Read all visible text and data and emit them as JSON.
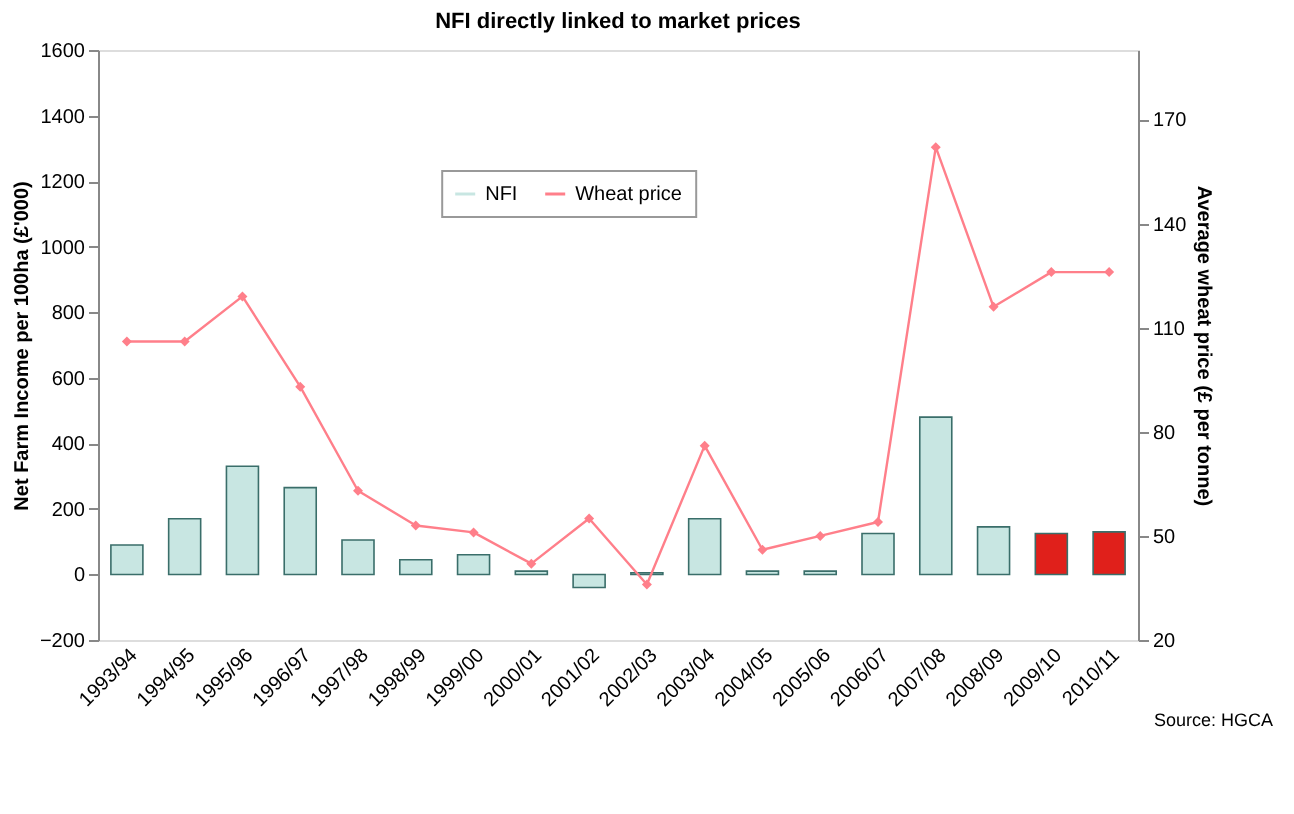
{
  "chart_data": {
    "type": "bar",
    "title": "NFI directly linked to market prices",
    "categories": [
      "1993/94",
      "1994/95",
      "1995/96",
      "1996/97",
      "1997/98",
      "1998/99",
      "1999/00",
      "2000/01",
      "2001/02",
      "2002/03",
      "2003/04",
      "2004/05",
      "2005/06",
      "2006/07",
      "2007/08",
      "2008/09",
      "2009/10",
      "2010/11"
    ],
    "ylabel": "Net Farm Income per 100ha (£'000)",
    "y2label": "Average wheat price (£ per tonne)",
    "series": [
      {
        "name": "NFI",
        "color": "#c8e6e2",
        "colors": [
          "#c8e6e2",
          "#c8e6e2",
          "#c8e6e2",
          "#c8e6e2",
          "#c8e6e2",
          "#c8e6e2",
          "#c8e6e2",
          "#c8e6e2",
          "#c8e6e2",
          "#c8e6e2",
          "#c8e6e2",
          "#c8e6e2",
          "#c8e6e2",
          "#c8e6e2",
          "#c8e6e2",
          "#c8e6e2",
          "#e0201b",
          "#e0201b"
        ],
        "values": [
          90,
          170,
          330,
          265,
          105,
          45,
          60,
          10,
          -40,
          5,
          170,
          10,
          10,
          125,
          480,
          145,
          125,
          130
        ]
      },
      {
        "name": "Wheat price",
        "type": "line",
        "axis": "y2",
        "color": "#ff7f8a",
        "marker": "diamond",
        "values": [
          106,
          106,
          119,
          93,
          63,
          53,
          51,
          42,
          55,
          36,
          76,
          46,
          50,
          54,
          162,
          116,
          126,
          126
        ]
      }
    ],
    "ylim": [
      -200,
      1600
    ],
    "yticks": [
      -200,
      0,
      200,
      400,
      600,
      800,
      1000,
      1200,
      1400,
      1600
    ],
    "y2lim": [
      20,
      190
    ],
    "y2ticks": [
      20,
      50,
      80,
      110,
      140,
      170
    ],
    "legend": "top",
    "grid": false,
    "annotations": [
      "Source: HGCA"
    ]
  }
}
